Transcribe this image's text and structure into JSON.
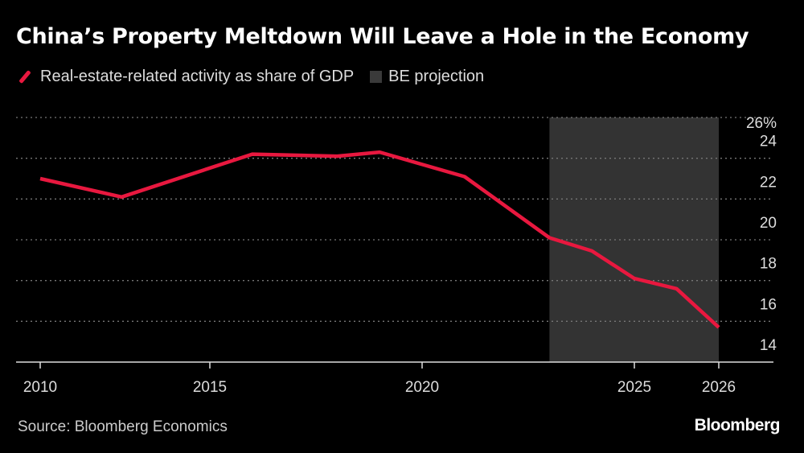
{
  "colors": {
    "line": "#e8183f",
    "projection": "#333333",
    "background": "#000000"
  },
  "chart_data": {
    "type": "line",
    "title": "China’s Property Meltdown Will Leave a Hole in the Economy",
    "legend": [
      "Real-estate-related activity as share of GDP",
      "BE projection"
    ],
    "legend_placement": "top-left",
    "source": "Source: Bloomberg Economics",
    "xticks": [
      2010,
      2015,
      2020,
      2025,
      2026
    ],
    "yticks": [
      {
        "v": 14,
        "label": "14"
      },
      {
        "v": 16,
        "label": "16"
      },
      {
        "v": 18,
        "label": "18"
      },
      {
        "v": 20,
        "label": "20"
      },
      {
        "v": 22,
        "label": "22"
      },
      {
        "v": 24,
        "label": "24"
      },
      {
        "v": 26,
        "label": "26%"
      }
    ],
    "ylim": [
      14,
      26
    ],
    "grid": true,
    "projection_range": [
      2023,
      2026
    ],
    "series": [
      {
        "name": "Real-estate-related activity as share of GDP",
        "points": [
          [
            2010,
            23.0
          ],
          [
            2012.4,
            22.1
          ],
          [
            2016,
            24.2
          ],
          [
            2018,
            24.1
          ],
          [
            2019,
            24.3
          ],
          [
            2021,
            23.1
          ],
          [
            2023,
            20.1
          ],
          [
            2024,
            19.45
          ],
          [
            2025,
            18.1
          ],
          [
            2025.5,
            17.6
          ],
          [
            2026,
            15.7
          ]
        ]
      }
    ]
  },
  "branding": {
    "logo": "Bloomberg"
  }
}
